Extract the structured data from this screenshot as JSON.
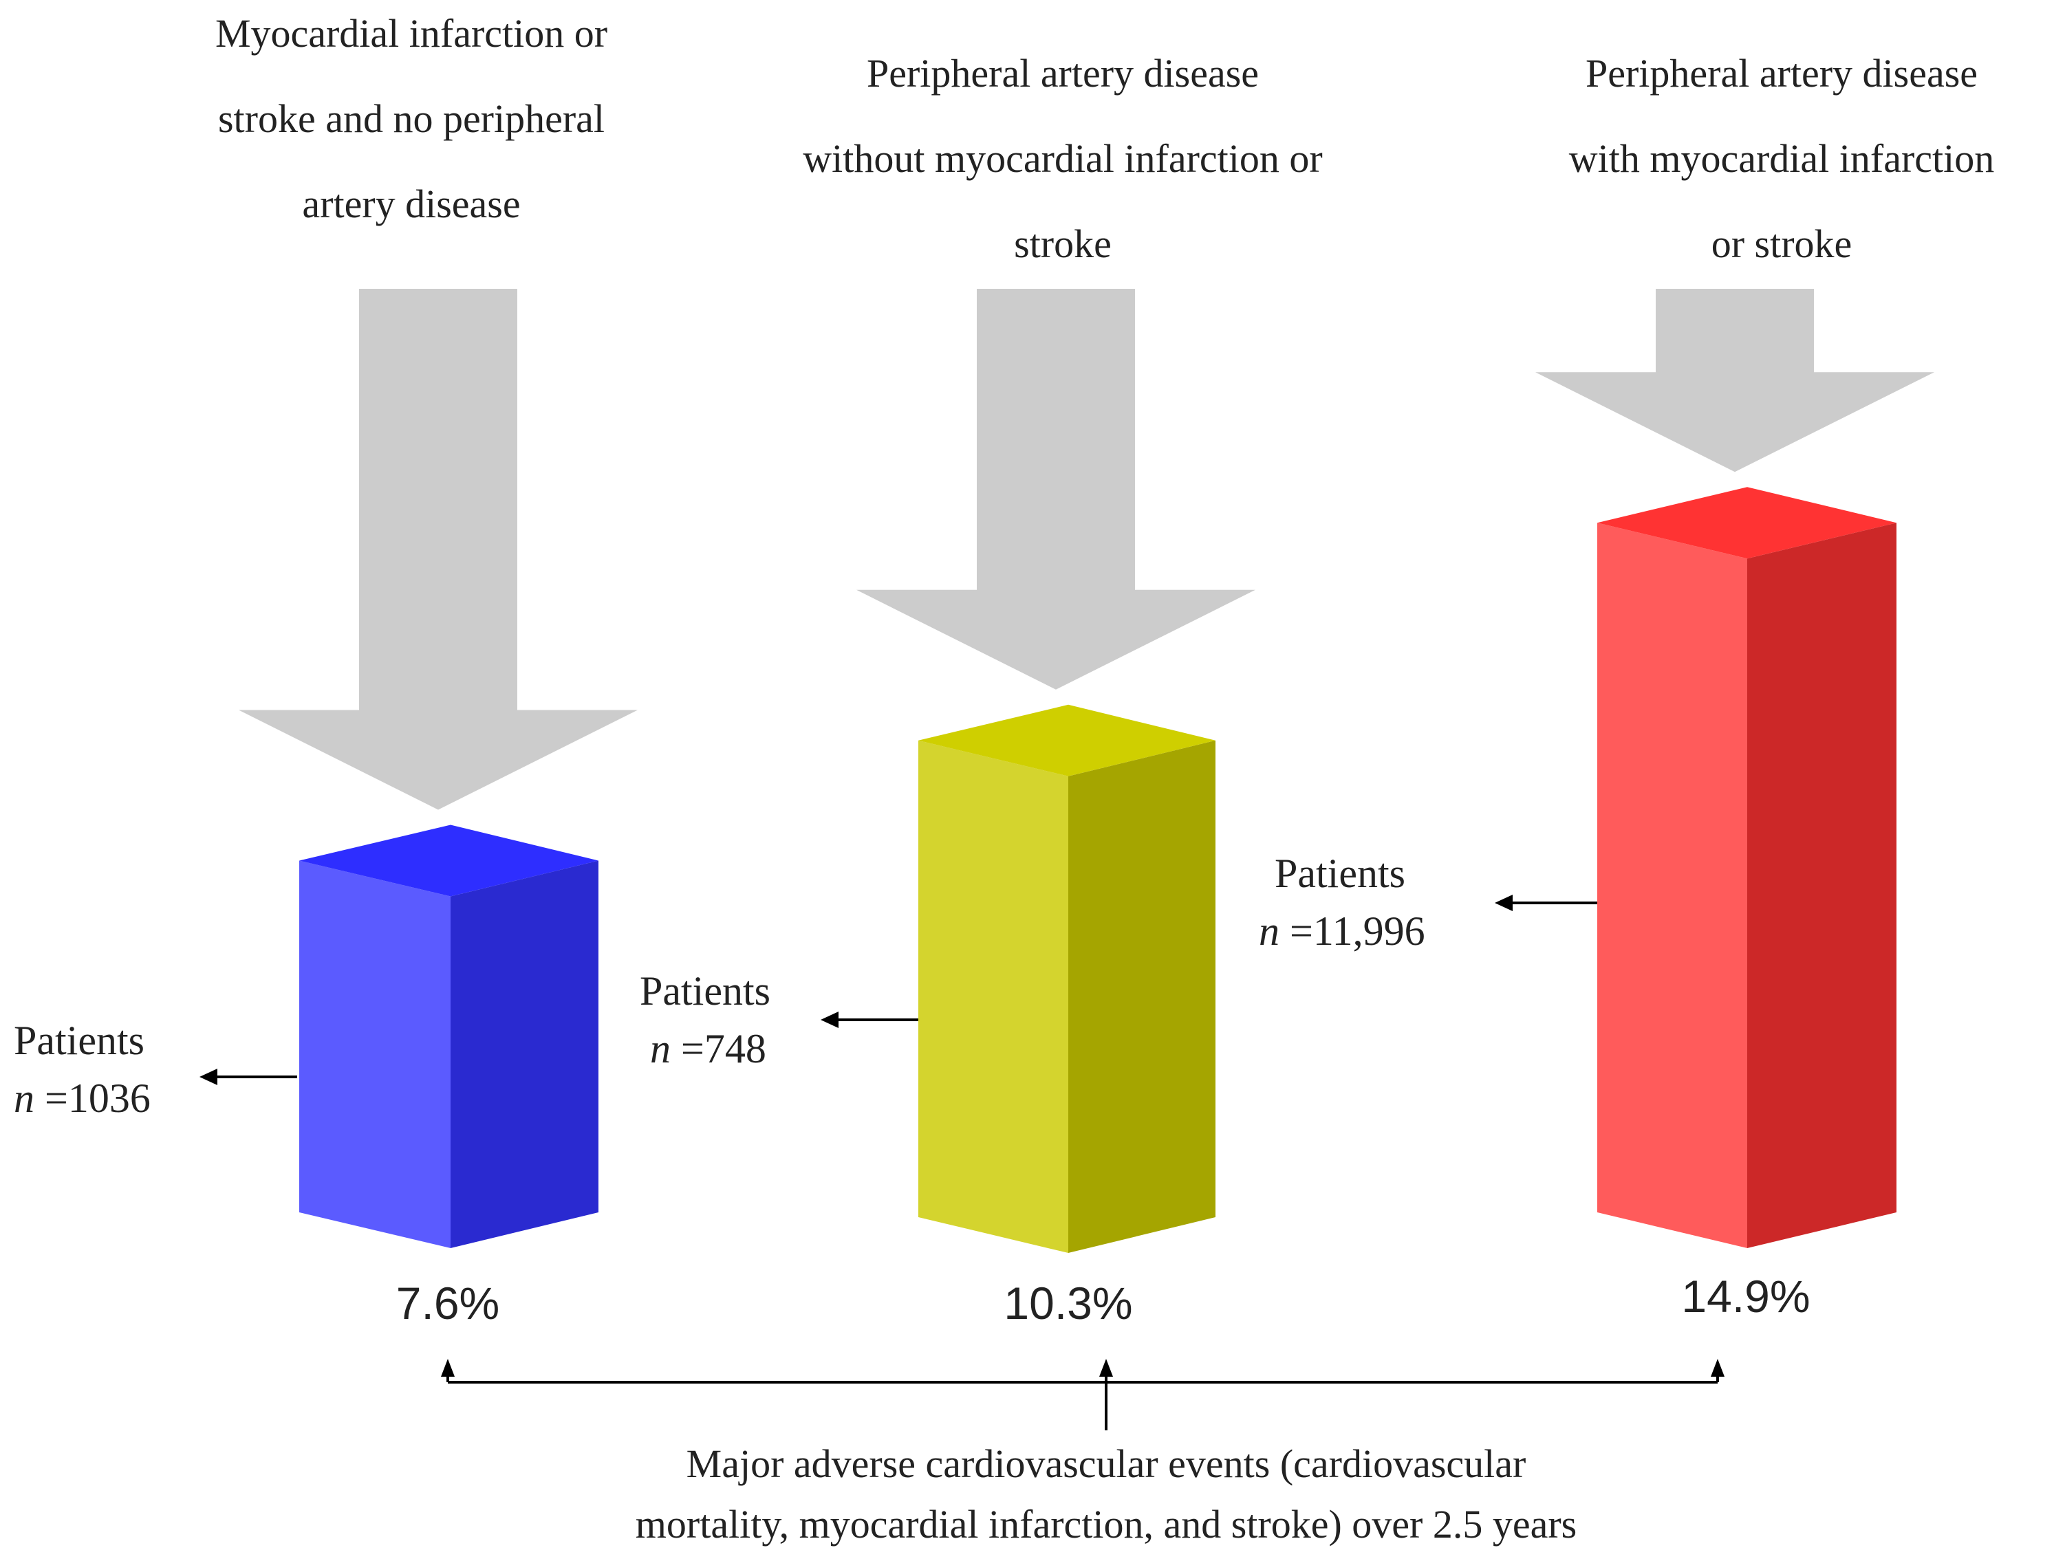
{
  "chart_data": {
    "type": "bar",
    "style": "3d-column",
    "categories": [
      "Myocardial infarction or stroke and no peripheral artery disease",
      "Peripheral artery disease without myocardial infarction or stroke",
      "Peripheral artery disease with myocardial infarction or stroke"
    ],
    "header_lines": [
      [
        "Myocardial infarction or",
        "stroke and no peripheral",
        "artery disease"
      ],
      [
        "Peripheral artery disease",
        "without myocardial infarction or",
        "stroke"
      ],
      [
        "Peripheral artery disease",
        "with myocardial infarction",
        "or stroke"
      ]
    ],
    "values": [
      7.6,
      10.3,
      14.9
    ],
    "value_labels": [
      "7.6%",
      "10.3%",
      "14.9%"
    ],
    "unit": "%",
    "patients_label": "Patients",
    "n_prefix": "n",
    "n_values": [
      "1036",
      "748",
      "11,996"
    ],
    "footer_lines": [
      "Major adverse cardiovascular events (cardiovascular",
      "mortality, myocardial infarction, and stroke) over 2.5 years"
    ],
    "colors": [
      {
        "front": "#5b5bff",
        "side": "#2a2ad0",
        "top": "#2e2eff"
      },
      {
        "front": "#d4d42e",
        "side": "#a5a500",
        "top": "#cfcf00"
      },
      {
        "front": "#ff5b5b",
        "side": "#cc2828",
        "top": "#ff3333"
      }
    ],
    "arrow_color": "#cccccc",
    "ylim": [
      0,
      15
    ]
  }
}
